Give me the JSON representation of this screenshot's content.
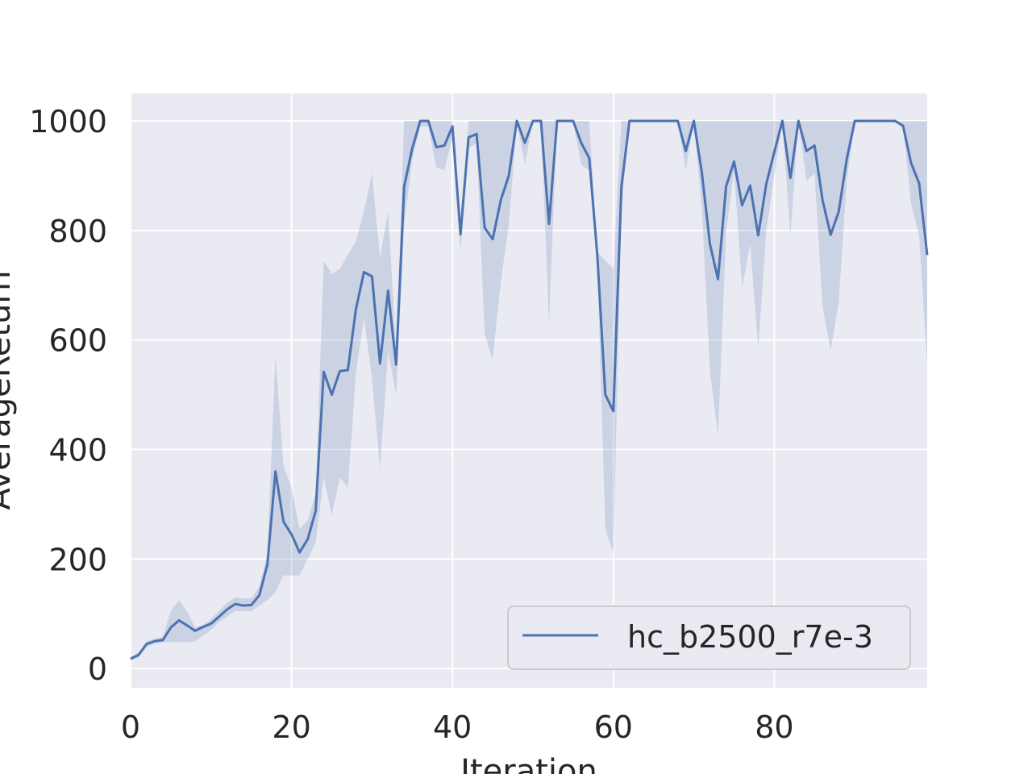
{
  "chart_data": {
    "type": "line",
    "title": "",
    "xlabel": "Iteration",
    "ylabel": "AverageReturn",
    "xlim": [
      0,
      99
    ],
    "ylim": [
      -35,
      1050
    ],
    "xticks": [
      0,
      20,
      40,
      60,
      80
    ],
    "yticks": [
      0,
      200,
      400,
      600,
      800,
      1000
    ],
    "grid": true,
    "legend_position": "lower-right",
    "colors": {
      "line": "#4c72b0",
      "band": "#4c72b0",
      "plot_bg": "#eaeaf2",
      "grid": "#ffffff"
    },
    "series": [
      {
        "name": "hc_b2500_r7e-3",
        "x": [
          0,
          1,
          2,
          3,
          4,
          5,
          6,
          7,
          8,
          9,
          10,
          11,
          12,
          13,
          14,
          15,
          16,
          17,
          18,
          19,
          20,
          21,
          22,
          23,
          24,
          25,
          26,
          27,
          28,
          29,
          30,
          31,
          32,
          33,
          34,
          35,
          36,
          37,
          38,
          39,
          40,
          41,
          42,
          43,
          44,
          45,
          46,
          47,
          48,
          49,
          50,
          51,
          52,
          53,
          54,
          55,
          56,
          57,
          58,
          59,
          60,
          61,
          62,
          63,
          64,
          65,
          66,
          67,
          68,
          69,
          70,
          71,
          72,
          73,
          74,
          75,
          76,
          77,
          78,
          79,
          80,
          81,
          82,
          83,
          84,
          85,
          86,
          87,
          88,
          89,
          90,
          91,
          92,
          93,
          94,
          95,
          96,
          97,
          98,
          99
        ],
        "y": [
          18,
          25,
          45,
          50,
          52,
          75,
          88,
          79,
          69,
          76,
          82,
          95,
          108,
          118,
          115,
          116,
          134,
          190,
          360,
          268,
          245,
          212,
          236,
          288,
          542,
          500,
          543,
          545,
          656,
          724,
          716,
          557,
          690,
          555,
          880,
          950,
          1000,
          1000,
          952,
          955,
          990,
          793,
          970,
          976,
          805,
          784,
          855,
          900,
          1000,
          960,
          1000,
          1000,
          812,
          1000,
          1000,
          1000,
          960,
          932,
          755,
          500,
          470,
          880,
          1000,
          1000,
          1000,
          1000,
          1000,
          1000,
          1000,
          945,
          1000,
          905,
          775,
          711,
          880,
          926,
          846,
          882,
          791,
          885,
          943,
          1000,
          896,
          1000,
          945,
          955,
          855,
          792,
          834,
          930,
          1000,
          1000,
          1000,
          1000,
          1000,
          1000,
          991,
          923,
          886,
          755
        ],
        "band_lower": [
          15,
          20,
          40,
          45,
          48,
          48,
          48,
          48,
          50,
          60,
          70,
          85,
          95,
          105,
          105,
          105,
          115,
          125,
          140,
          170,
          170,
          170,
          200,
          230,
          350,
          280,
          350,
          330,
          540,
          640,
          530,
          365,
          580,
          500,
          810,
          930,
          990,
          990,
          915,
          910,
          970,
          760,
          950,
          960,
          610,
          565,
          705,
          810,
          1000,
          920,
          1000,
          1000,
          630,
          1000,
          1000,
          1000,
          920,
          910,
          740,
          255,
          210,
          840,
          1000,
          1000,
          1000,
          1000,
          1000,
          1000,
          1000,
          910,
          1000,
          840,
          545,
          425,
          795,
          910,
          695,
          775,
          585,
          800,
          900,
          1000,
          790,
          1000,
          890,
          905,
          660,
          580,
          670,
          890,
          1000,
          1000,
          1000,
          1000,
          1000,
          1000,
          990,
          850,
          790,
          555
        ],
        "band_upper": [
          20,
          30,
          50,
          55,
          58,
          105,
          125,
          105,
          75,
          80,
          90,
          105,
          120,
          130,
          128,
          128,
          150,
          210,
          570,
          370,
          330,
          255,
          270,
          320,
          745,
          720,
          730,
          755,
          780,
          835,
          905,
          750,
          835,
          580,
          1000,
          1000,
          1000,
          1000,
          1000,
          1000,
          1000,
          810,
          1000,
          1000,
          1000,
          1000,
          1000,
          1000,
          1000,
          1000,
          1000,
          1000,
          1000,
          1000,
          1000,
          1000,
          1000,
          1000,
          760,
          745,
          730,
          1000,
          1000,
          1000,
          1000,
          1000,
          1000,
          1000,
          1000,
          1000,
          1000,
          1000,
          1000,
          1000,
          1000,
          1000,
          1000,
          1000,
          1000,
          1000,
          1000,
          1000,
          1000,
          1000,
          1000,
          1000,
          1000,
          1000,
          1000,
          1000,
          1000,
          1000,
          1000,
          1000,
          1000,
          1000,
          1000,
          1000,
          1000,
          1000
        ]
      }
    ]
  }
}
